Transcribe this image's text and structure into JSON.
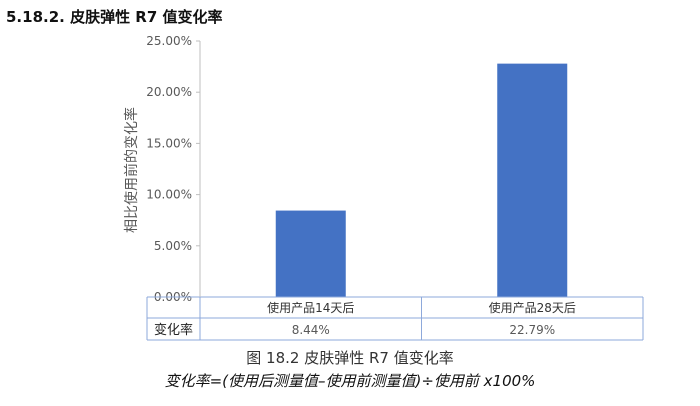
{
  "section_heading": "5.18.2. 皮肤弹性 R7 值变化率",
  "figure_caption": "图 18.2 皮肤弹性 R7 值变化率",
  "formula": "变化率=(使用后测量值–使用前测量值)÷使用前 x100%",
  "colors": {
    "bar": "#4472C4",
    "axis": "#BFBFBF",
    "table_border": "#8EA9DB",
    "tick_text": "#595959"
  },
  "chart_data": {
    "type": "bar",
    "title": "",
    "xlabel": "",
    "ylabel": "相比使用前的变化率",
    "categories": [
      "使用产品14天后",
      "使用产品28天后"
    ],
    "values": [
      0.0844,
      0.2279
    ],
    "ylim": [
      0,
      0.25
    ],
    "yticks": [
      "0.00%",
      "5.00%",
      "10.00%",
      "15.00%",
      "20.00%",
      "25.00%"
    ],
    "grid": false,
    "legend": "none",
    "data_table": {
      "row_label": "变化率",
      "values": [
        "8.44%",
        "22.79%"
      ]
    }
  }
}
